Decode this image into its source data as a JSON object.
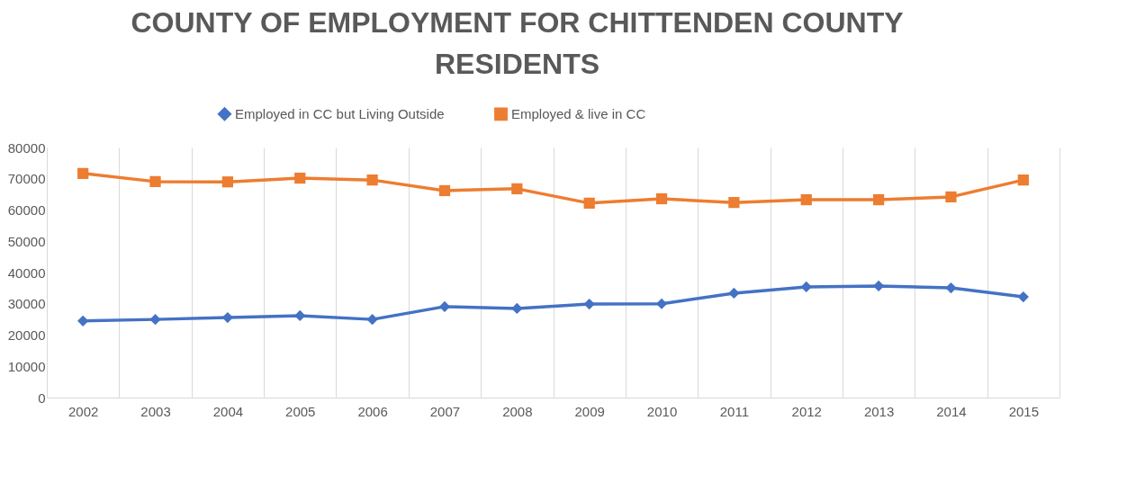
{
  "chart_data": {
    "type": "line",
    "title": "COUNTY OF EMPLOYMENT FOR CHITTENDEN COUNTY RESIDENTS",
    "categories": [
      "2002",
      "2003",
      "2004",
      "2005",
      "2006",
      "2007",
      "2008",
      "2009",
      "2010",
      "2011",
      "2012",
      "2013",
      "2014",
      "2015"
    ],
    "series": [
      {
        "name": "Employed in CC but Living Outside",
        "color": "#4472c4",
        "marker": "diamond",
        "values": [
          24500,
          25000,
          25600,
          26200,
          25000,
          29100,
          28500,
          29900,
          30000,
          33400,
          35400,
          35700,
          35100,
          32200
        ]
      },
      {
        "name": "Employed & live in CC",
        "color": "#ed7d31",
        "marker": "square",
        "values": [
          71700,
          69100,
          69000,
          70200,
          69600,
          66200,
          66800,
          62200,
          63600,
          62400,
          63300,
          63300,
          64200,
          69600
        ]
      }
    ],
    "ylim": [
      0,
      80000
    ],
    "yticks": [
      0,
      10000,
      20000,
      30000,
      40000,
      50000,
      60000,
      70000,
      80000
    ],
    "grid": "x",
    "legend": "top"
  }
}
